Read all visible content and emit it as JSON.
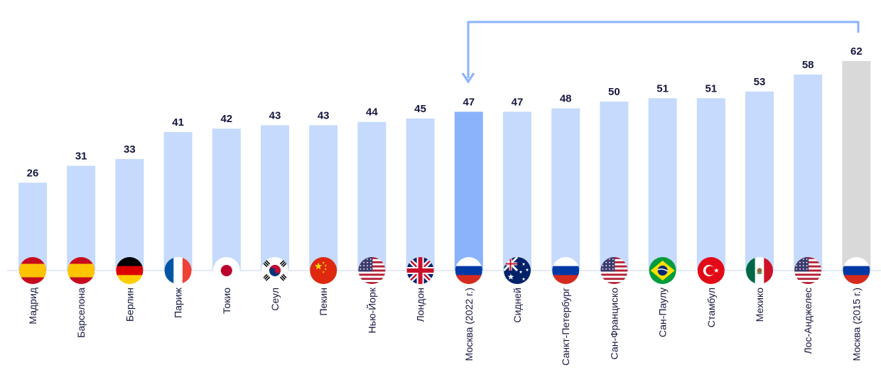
{
  "chart_data": {
    "type": "bar",
    "categories": [
      "Мадрид",
      "Барселона",
      "Берлин",
      "Париж",
      "Токио",
      "Сеул",
      "Пекин",
      "Нью-Йорк",
      "Лондон",
      "Москва (2022 г.)",
      "Сидней",
      "Санкт-Петербург",
      "Сан-Франциско",
      "Сан-Паулу",
      "Стамбул",
      "Мехико",
      "Лос-Анджелес",
      "Москва (2015 г.)"
    ],
    "values": [
      26,
      31,
      33,
      41,
      42,
      43,
      43,
      44,
      45,
      47,
      47,
      48,
      50,
      51,
      51,
      53,
      58,
      62
    ],
    "flags": [
      "spain",
      "spain",
      "germany",
      "france",
      "japan",
      "south-korea",
      "china",
      "usa",
      "uk",
      "russia",
      "australia",
      "russia",
      "usa",
      "brazil",
      "turkey",
      "mexico",
      "usa",
      "russia"
    ],
    "highlight": {
      "current": "Москва (2022 г.)",
      "previous": "Москва (2015 г.)",
      "arrow": "from previous to current"
    },
    "colors": {
      "default_bar": "#c5dafc",
      "highlight_bar": "#8ab3fc",
      "previous_bar": "#d9d9d9",
      "value_label": "#15163f",
      "arrow": "#8ab3fc",
      "baseline": "#c9d6ee"
    },
    "ylim": [
      0,
      62
    ],
    "grid": false,
    "legend": "none"
  }
}
